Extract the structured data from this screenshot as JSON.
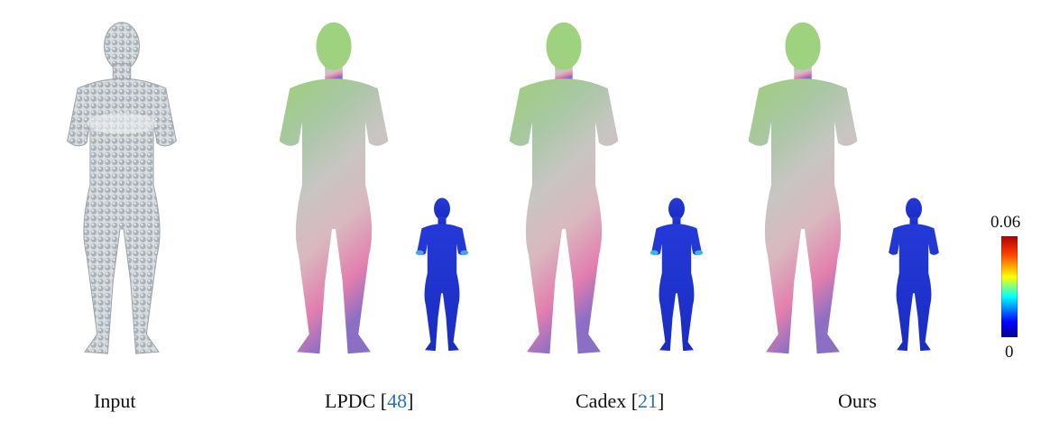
{
  "captions": {
    "input": "Input",
    "lpdc": {
      "name": "LPDC",
      "ref": "48"
    },
    "cadex": {
      "name": "Cadex",
      "ref": "21"
    },
    "ours": "Ours"
  },
  "colorbar": {
    "max_label": "0.06",
    "min_label": "0"
  },
  "colors": {
    "citation": "#2a6fb0",
    "pointcloud": "#b4bcc2",
    "error_base": "#1c2fd0"
  },
  "figures": [
    {
      "id": "input",
      "kind": "point-cloud"
    },
    {
      "id": "lpdc",
      "kind": "correspondence-mesh",
      "error_inset": true
    },
    {
      "id": "cadex",
      "kind": "correspondence-mesh",
      "error_inset": true
    },
    {
      "id": "ours",
      "kind": "correspondence-mesh",
      "error_inset": true
    }
  ]
}
